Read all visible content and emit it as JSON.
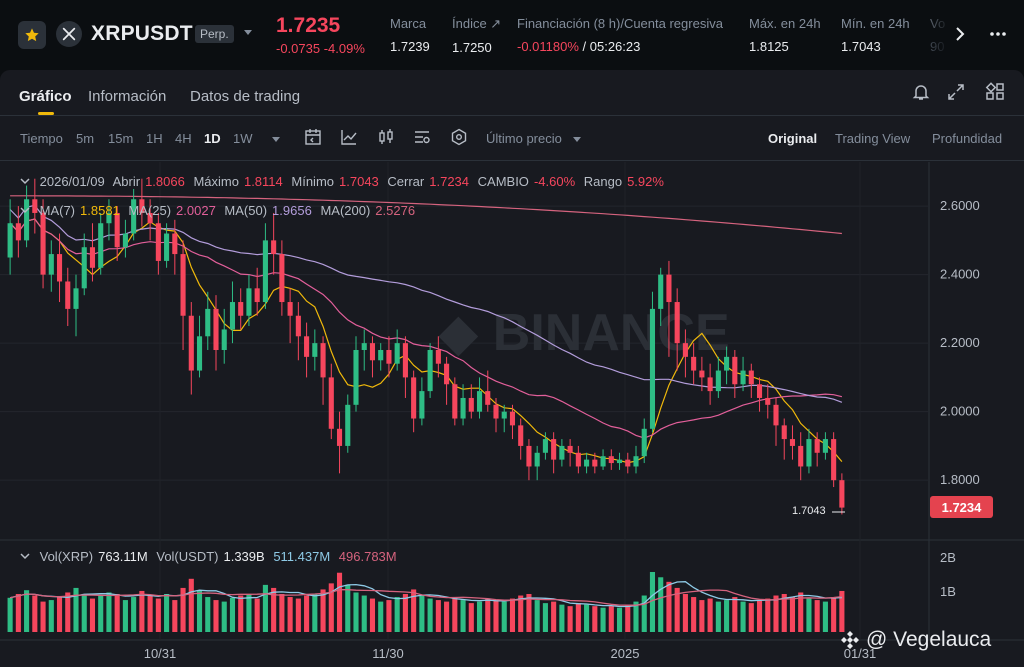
{
  "ticker": {
    "symbol": "XRPUSDT",
    "badge": "Perp.",
    "last_price": "1.7235",
    "change": "-0.0735 -4.09%",
    "stats": [
      {
        "label": "Marca",
        "value": "1.7239"
      },
      {
        "label": "Índice ↗",
        "value": "1.7250"
      },
      {
        "label": "Financiación (8 h)/Cuenta regresiva",
        "value_neg": "-0.01180%",
        "value": " / 05:26:23"
      },
      {
        "label": "Máx. en 24h",
        "value": "1.8125"
      },
      {
        "label": "Mín. en 24h",
        "value": "1.7043"
      },
      {
        "label": "Vo",
        "value": "90"
      }
    ]
  },
  "tabs": [
    "Gráfico",
    "Información",
    "Datos de trading"
  ],
  "toolbar": {
    "intervals": [
      "Tiempo",
      "5m",
      "15m",
      "1H",
      "4H",
      "1D",
      "1W"
    ],
    "price_type": "Último precio",
    "views": [
      "Original",
      "Trading View",
      "Profundidad"
    ]
  },
  "legend": {
    "date": "2026/01/09",
    "open_label": "Abrir",
    "open": "1.8066",
    "high_label": "Máximo",
    "high": "1.8114",
    "low_label": "Mínimo",
    "low": "1.7043",
    "close_label": "Cerrar",
    "close": "1.7234",
    "change_label": "CAMBIO",
    "change": "-4.60%",
    "range_label": "Rango",
    "range": "5.92%",
    "ma7_label": "MA(7)",
    "ma7": "1.8581",
    "ma25_label": "MA(25)",
    "ma25": "2.0027",
    "ma50_label": "MA(50)",
    "ma50": "1.9656",
    "ma200_label": "MA(200)",
    "ma200": "2.5276",
    "vol_label": "Vol(XRP)",
    "vol": "763.11M",
    "volq_label": "Vol(USDT)",
    "volq": "1.339B",
    "vol_ma1": "511.437M",
    "vol_ma2": "496.783M"
  },
  "price_tag": "1.7234",
  "low_marker": "1.7043",
  "watermark": "@ Vegelauca",
  "colors": {
    "up": "#2ebd85",
    "down": "#f6465d",
    "ma7": "#f0b90b",
    "ma25": "#e25f9a",
    "ma50": "#b39ddb",
    "ma200": "#d5637e",
    "accent": "#f0b90b"
  },
  "chart_data": {
    "type": "candlestick",
    "y_ticks": [
      "2.6000",
      "2.4000",
      "2.2000",
      "2.0000",
      "1.8000"
    ],
    "vol_ticks": [
      "2B",
      "1B"
    ],
    "x_ticks": [
      "10/31",
      "11/30",
      "2025",
      "01/31"
    ],
    "ylim": [
      1.64,
      2.72
    ],
    "candles": [
      [
        2.45,
        2.55,
        2.62,
        2.4
      ],
      [
        2.55,
        2.5,
        2.6,
        2.45
      ],
      [
        2.5,
        2.62,
        2.66,
        2.48
      ],
      [
        2.62,
        2.58,
        2.68,
        2.52
      ],
      [
        2.58,
        2.4,
        2.62,
        2.36
      ],
      [
        2.4,
        2.46,
        2.5,
        2.35
      ],
      [
        2.46,
        2.38,
        2.52,
        2.32
      ],
      [
        2.38,
        2.3,
        2.42,
        2.25
      ],
      [
        2.3,
        2.36,
        2.4,
        2.22
      ],
      [
        2.36,
        2.48,
        2.52,
        2.34
      ],
      [
        2.48,
        2.42,
        2.55,
        2.38
      ],
      [
        2.42,
        2.55,
        2.58,
        2.4
      ],
      [
        2.55,
        2.58,
        2.62,
        2.5
      ],
      [
        2.58,
        2.48,
        2.6,
        2.44
      ],
      [
        2.48,
        2.52,
        2.56,
        2.45
      ],
      [
        2.52,
        2.62,
        2.65,
        2.5
      ],
      [
        2.62,
        2.58,
        2.68,
        2.54
      ],
      [
        2.58,
        2.55,
        2.62,
        2.5
      ],
      [
        2.55,
        2.44,
        2.58,
        2.4
      ],
      [
        2.44,
        2.52,
        2.55,
        2.42
      ],
      [
        2.52,
        2.46,
        2.56,
        2.4
      ],
      [
        2.46,
        2.28,
        2.5,
        2.18
      ],
      [
        2.28,
        2.12,
        2.32,
        2.05
      ],
      [
        2.12,
        2.22,
        2.28,
        2.1
      ],
      [
        2.22,
        2.3,
        2.35,
        2.18
      ],
      [
        2.3,
        2.18,
        2.34,
        2.12
      ],
      [
        2.18,
        2.24,
        2.3,
        2.14
      ],
      [
        2.24,
        2.32,
        2.38,
        2.2
      ],
      [
        2.32,
        2.28,
        2.36,
        2.24
      ],
      [
        2.28,
        2.36,
        2.4,
        2.25
      ],
      [
        2.36,
        2.32,
        2.42,
        2.28
      ],
      [
        2.32,
        2.5,
        2.55,
        2.3
      ],
      [
        2.5,
        2.46,
        2.58,
        2.4
      ],
      [
        2.46,
        2.32,
        2.5,
        2.28
      ],
      [
        2.32,
        2.28,
        2.36,
        2.2
      ],
      [
        2.28,
        2.22,
        2.32,
        2.15
      ],
      [
        2.22,
        2.16,
        2.26,
        2.1
      ],
      [
        2.16,
        2.2,
        2.24,
        2.12
      ],
      [
        2.2,
        2.1,
        2.22,
        2.02
      ],
      [
        2.1,
        1.95,
        2.14,
        1.92
      ],
      [
        1.95,
        1.9,
        2.0,
        1.82
      ],
      [
        1.9,
        2.02,
        2.05,
        1.88
      ],
      [
        2.02,
        2.18,
        2.22,
        2.0
      ],
      [
        2.18,
        2.2,
        2.24,
        2.12
      ],
      [
        2.2,
        2.15,
        2.22,
        2.1
      ],
      [
        2.15,
        2.18,
        2.2,
        2.12
      ],
      [
        2.18,
        2.14,
        2.22,
        2.1
      ],
      [
        2.14,
        2.2,
        2.24,
        2.12
      ],
      [
        2.2,
        2.1,
        2.22,
        2.04
      ],
      [
        2.1,
        1.98,
        2.12,
        1.94
      ],
      [
        1.98,
        2.06,
        2.1,
        1.96
      ],
      [
        2.06,
        2.18,
        2.2,
        2.04
      ],
      [
        2.18,
        2.14,
        2.22,
        2.1
      ],
      [
        2.14,
        2.08,
        2.16,
        2.02
      ],
      [
        2.08,
        1.98,
        2.1,
        1.96
      ],
      [
        1.98,
        2.04,
        2.08,
        1.96
      ],
      [
        2.04,
        2.0,
        2.08,
        1.98
      ],
      [
        2.0,
        2.06,
        2.1,
        1.98
      ],
      [
        2.06,
        2.02,
        2.12,
        2.0
      ],
      [
        2.02,
        1.98,
        2.04,
        1.94
      ],
      [
        1.98,
        2.0,
        2.02,
        1.94
      ],
      [
        2.0,
        1.96,
        2.02,
        1.92
      ],
      [
        1.96,
        1.9,
        1.98,
        1.86
      ],
      [
        1.9,
        1.84,
        1.92,
        1.8
      ],
      [
        1.84,
        1.88,
        1.9,
        1.8
      ],
      [
        1.88,
        1.92,
        1.94,
        1.86
      ],
      [
        1.92,
        1.86,
        1.94,
        1.82
      ],
      [
        1.86,
        1.9,
        1.92,
        1.84
      ],
      [
        1.9,
        1.88,
        1.92,
        1.84
      ],
      [
        1.88,
        1.84,
        1.9,
        1.82
      ],
      [
        1.84,
        1.86,
        1.88,
        1.82
      ],
      [
        1.86,
        1.84,
        1.88,
        1.82
      ],
      [
        1.84,
        1.87,
        1.89,
        1.83
      ],
      [
        1.87,
        1.85,
        1.89,
        1.83
      ],
      [
        1.85,
        1.86,
        1.88,
        1.83
      ],
      [
        1.86,
        1.84,
        1.88,
        1.82
      ],
      [
        1.84,
        1.87,
        1.9,
        1.82
      ],
      [
        1.87,
        1.95,
        1.98,
        1.85
      ],
      [
        1.95,
        2.3,
        2.35,
        1.94
      ],
      [
        2.3,
        2.4,
        2.42,
        2.25
      ],
      [
        2.4,
        2.32,
        2.44,
        2.16
      ],
      [
        2.32,
        2.2,
        2.36,
        2.12
      ],
      [
        2.2,
        2.16,
        2.24,
        2.1
      ],
      [
        2.16,
        2.12,
        2.2,
        2.08
      ],
      [
        2.12,
        2.1,
        2.16,
        2.06
      ],
      [
        2.1,
        2.06,
        2.14,
        2.02
      ],
      [
        2.06,
        2.12,
        2.16,
        2.04
      ],
      [
        2.12,
        2.16,
        2.19,
        2.08
      ],
      [
        2.16,
        2.08,
        2.18,
        2.04
      ],
      [
        2.08,
        2.12,
        2.16,
        2.06
      ],
      [
        2.12,
        2.08,
        2.14,
        2.04
      ],
      [
        2.08,
        2.04,
        2.1,
        2.0
      ],
      [
        2.04,
        2.02,
        2.08,
        1.98
      ],
      [
        2.02,
        1.96,
        2.04,
        1.9
      ],
      [
        1.96,
        1.92,
        1.98,
        1.86
      ],
      [
        1.92,
        1.9,
        1.96,
        1.86
      ],
      [
        1.9,
        1.84,
        1.94,
        1.8
      ],
      [
        1.84,
        1.92,
        1.95,
        1.82
      ],
      [
        1.92,
        1.88,
        1.94,
        1.84
      ],
      [
        1.88,
        1.92,
        1.94,
        1.86
      ],
      [
        1.92,
        1.8,
        1.94,
        1.78
      ],
      [
        1.8,
        1.72,
        1.82,
        1.7
      ]
    ],
    "volumes": [
      0.45,
      0.5,
      0.55,
      0.48,
      0.4,
      0.42,
      0.46,
      0.52,
      0.58,
      0.5,
      0.44,
      0.48,
      0.52,
      0.5,
      0.42,
      0.46,
      0.54,
      0.48,
      0.44,
      0.5,
      0.42,
      0.58,
      0.7,
      0.55,
      0.46,
      0.42,
      0.4,
      0.45,
      0.48,
      0.5,
      0.44,
      0.62,
      0.58,
      0.5,
      0.46,
      0.44,
      0.48,
      0.5,
      0.56,
      0.64,
      0.78,
      0.62,
      0.52,
      0.48,
      0.44,
      0.4,
      0.42,
      0.46,
      0.5,
      0.56,
      0.48,
      0.44,
      0.42,
      0.4,
      0.46,
      0.42,
      0.38,
      0.4,
      0.44,
      0.42,
      0.4,
      0.44,
      0.48,
      0.5,
      0.42,
      0.38,
      0.4,
      0.36,
      0.34,
      0.38,
      0.36,
      0.34,
      0.32,
      0.34,
      0.32,
      0.36,
      0.4,
      0.48,
      0.85,
      0.72,
      0.66,
      0.58,
      0.5,
      0.46,
      0.42,
      0.44,
      0.4,
      0.42,
      0.46,
      0.4,
      0.38,
      0.42,
      0.44,
      0.48,
      0.5,
      0.46,
      0.52,
      0.44,
      0.42,
      0.4,
      0.46,
      0.54
    ]
  }
}
